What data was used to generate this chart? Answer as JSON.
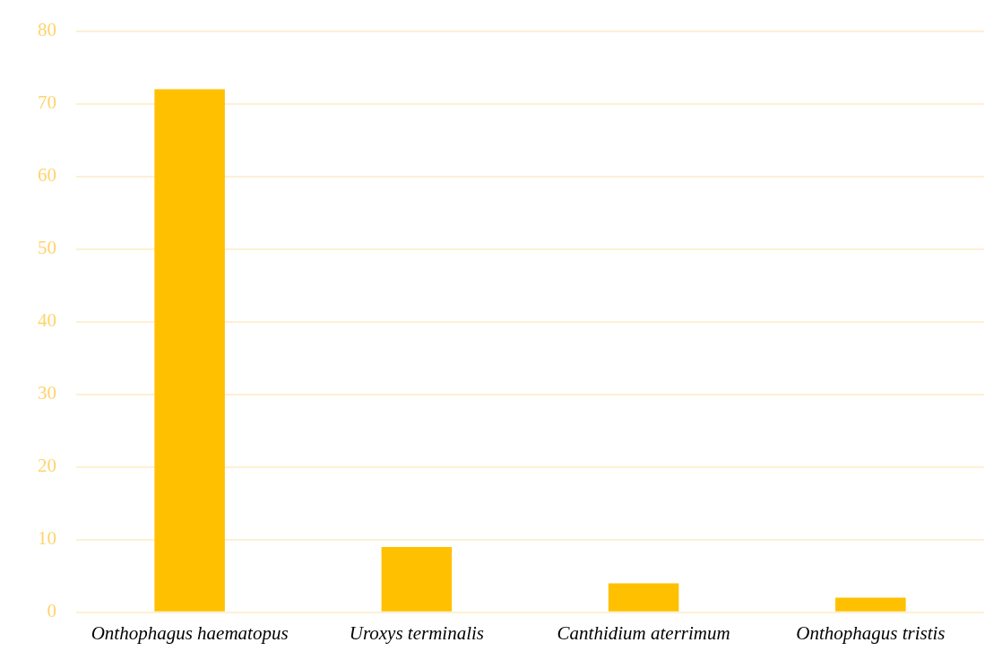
{
  "chart_data": {
    "type": "bar",
    "categories": [
      "Onthophagus haematopus",
      "Uroxys terminalis",
      "Canthidium aterrimum",
      "Onthophagus tristis"
    ],
    "values": [
      72,
      9,
      4,
      2
    ],
    "color": "#ffc000",
    "ylim": [
      0,
      80
    ],
    "yticks": [
      0,
      10,
      20,
      30,
      40,
      50,
      60,
      70,
      80
    ],
    "grid": "y",
    "legend": false
  }
}
